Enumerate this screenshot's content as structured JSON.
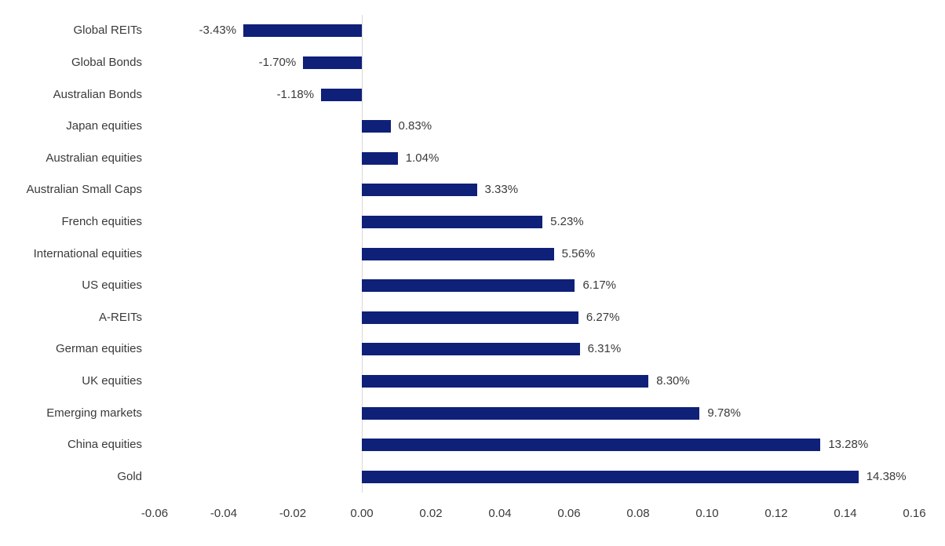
{
  "chart_data": {
    "type": "bar",
    "orientation": "horizontal",
    "title": "",
    "xlabel": "",
    "ylabel": "",
    "categories": [
      "Global REITs",
      "Global Bonds",
      "Australian Bonds",
      "Japan equities",
      "Australian equities",
      "Australian Small Caps",
      "French equities",
      "International equities",
      "US equities",
      "A-REITs",
      "German equities",
      "UK equities",
      "Emerging markets",
      "China equities",
      "Gold"
    ],
    "values": [
      -0.0343,
      -0.017,
      -0.0118,
      0.0083,
      0.0104,
      0.0333,
      0.0523,
      0.0556,
      0.0617,
      0.0627,
      0.0631,
      0.083,
      0.0978,
      0.1328,
      0.1438
    ],
    "value_labels": [
      "-3.43%",
      "-1.70%",
      "-1.18%",
      "0.83%",
      "1.04%",
      "3.33%",
      "5.23%",
      "5.56%",
      "6.17%",
      "6.27%",
      "6.31%",
      "8.30%",
      "9.78%",
      "13.28%",
      "14.38%"
    ],
    "xlim": [
      -0.06,
      0.16
    ],
    "x_ticks": [
      "-0.06",
      "-0.04",
      "-0.02",
      "0.00",
      "0.02",
      "0.04",
      "0.06",
      "0.08",
      "0.10",
      "0.12",
      "0.14",
      "0.16"
    ],
    "grid": false,
    "legend": "none",
    "colors": {
      "bar": "#0f2079",
      "zero_axis_line": "#d9d9d9",
      "text": "#3a3a3a",
      "background": "#ffffff"
    }
  }
}
